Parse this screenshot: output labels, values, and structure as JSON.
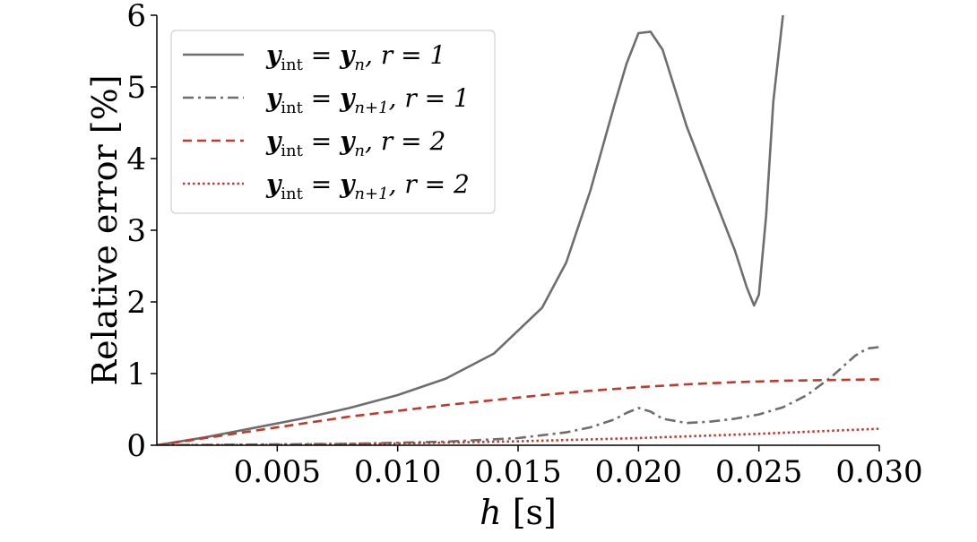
{
  "chart_data": {
    "type": "line",
    "xlabel": "h [s]",
    "ylabel": "Relative error [%]",
    "xlim": [
      0,
      0.03
    ],
    "ylim": [
      0,
      6
    ],
    "x_ticks": [
      0.005,
      0.01,
      0.015,
      0.02,
      0.025,
      0.03
    ],
    "x_tick_labels": [
      "0.005",
      "0.010",
      "0.015",
      "0.020",
      "0.025",
      "0.030"
    ],
    "y_ticks": [
      0,
      1,
      2,
      3,
      4,
      5,
      6
    ],
    "y_tick_labels": [
      "0",
      "1",
      "2",
      "3",
      "4",
      "5",
      "6"
    ],
    "grid": false,
    "legend_position": "top-left",
    "series": [
      {
        "name": "y_int = y_n, r = 1",
        "color": "#6e6e6e",
        "style": "solid",
        "x": [
          0,
          0.002,
          0.004,
          0.006,
          0.008,
          0.01,
          0.012,
          0.014,
          0.016,
          0.017,
          0.018,
          0.019,
          0.0195,
          0.02,
          0.0205,
          0.021,
          0.022,
          0.023,
          0.024,
          0.0245,
          0.0248,
          0.025,
          0.0253,
          0.0256,
          0.026
        ],
        "y": [
          0,
          0.11,
          0.24,
          0.37,
          0.52,
          0.7,
          0.93,
          1.28,
          1.92,
          2.55,
          3.55,
          4.75,
          5.32,
          5.75,
          5.77,
          5.52,
          4.45,
          3.58,
          2.72,
          2.2,
          1.95,
          2.1,
          3.2,
          4.8,
          6.0
        ]
      },
      {
        "name": "y_int = y_{n+1}, r = 1",
        "color": "#6e6e6e",
        "style": "dashdot",
        "x": [
          0,
          0.004,
          0.008,
          0.012,
          0.015,
          0.017,
          0.018,
          0.019,
          0.0195,
          0.02,
          0.0205,
          0.021,
          0.022,
          0.023,
          0.024,
          0.025,
          0.026,
          0.027,
          0.028,
          0.029,
          0.0295,
          0.03
        ],
        "y": [
          0,
          0.01,
          0.02,
          0.05,
          0.1,
          0.18,
          0.25,
          0.36,
          0.45,
          0.52,
          0.47,
          0.37,
          0.31,
          0.33,
          0.37,
          0.43,
          0.53,
          0.7,
          0.95,
          1.25,
          1.35,
          1.37
        ]
      },
      {
        "name": "y_int = y_n, r = 2",
        "color": "#c0392b",
        "style": "dashed",
        "x": [
          0,
          0.002,
          0.004,
          0.006,
          0.008,
          0.01,
          0.012,
          0.014,
          0.016,
          0.018,
          0.02,
          0.022,
          0.024,
          0.026,
          0.028,
          0.03
        ],
        "y": [
          0,
          0.1,
          0.2,
          0.3,
          0.4,
          0.48,
          0.56,
          0.63,
          0.7,
          0.76,
          0.81,
          0.85,
          0.88,
          0.9,
          0.91,
          0.92
        ]
      },
      {
        "name": "y_int = y_{n+1}, r = 2",
        "color": "#c0392b",
        "style": "dotted",
        "x": [
          0,
          0.005,
          0.01,
          0.015,
          0.02,
          0.025,
          0.03
        ],
        "y": [
          0,
          0.006,
          0.025,
          0.055,
          0.1,
          0.16,
          0.23
        ]
      }
    ]
  },
  "legend": {
    "entries": [
      {
        "base": "y",
        "base_sub": "int",
        "eq": " = ",
        "target": "y",
        "target_sub": "n",
        "rest": ", r = 1",
        "color": "#6e6e6e",
        "style": "solid"
      },
      {
        "base": "y",
        "base_sub": "int",
        "eq": " = ",
        "target": "y",
        "target_sub": "n+1",
        "rest": ", r = 1",
        "color": "#6e6e6e",
        "style": "dashdot"
      },
      {
        "base": "y",
        "base_sub": "int",
        "eq": " = ",
        "target": "y",
        "target_sub": "n",
        "rest": ", r = 2",
        "color": "#c0392b",
        "style": "dashed"
      },
      {
        "base": "y",
        "base_sub": "int",
        "eq": " = ",
        "target": "y",
        "target_sub": "n+1",
        "rest": ", r = 2",
        "color": "#c0392b",
        "style": "dotted"
      }
    ]
  },
  "xlabel_parts": {
    "var": "h",
    "unit": " [s]"
  }
}
